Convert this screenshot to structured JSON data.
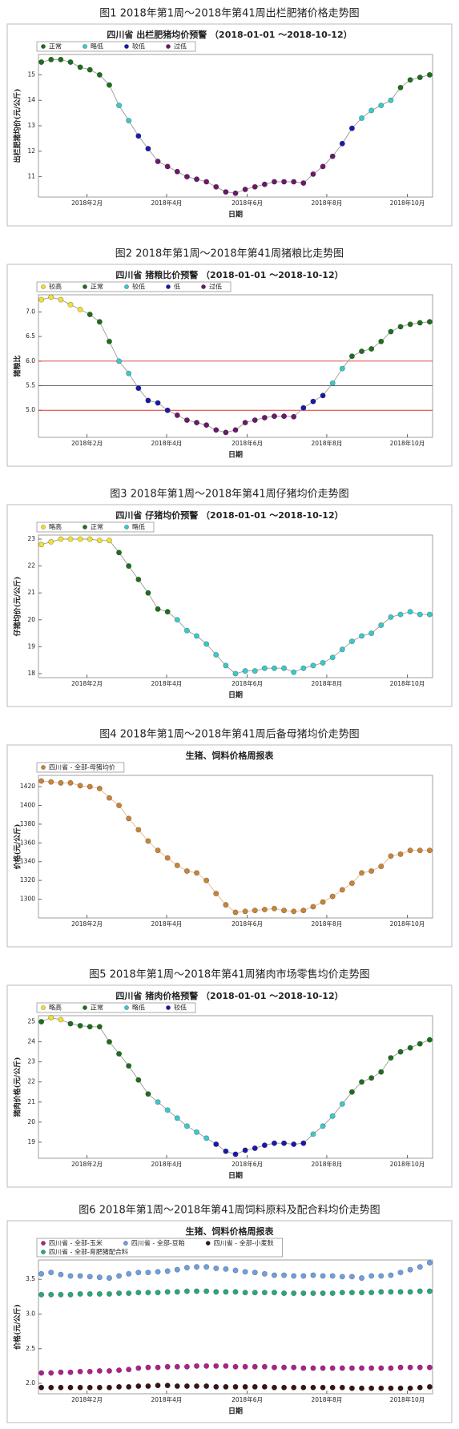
{
  "chart_data": [
    {
      "type": "scatter",
      "caption": "图1 2018年第1周～2018年第41周出栏肥猪价格走势图",
      "title": "四川省 出栏肥猪均价预警 （2018-01-01 ～2018-10-12）",
      "x_label": "日期",
      "y_label": "出栏肥猪均价(元/公斤)",
      "line_color": "#9a9a9a",
      "xlim": [
        0.7,
        41.3
      ],
      "xticks": [
        {
          "value": 5.7,
          "label": "2018年2月"
        },
        {
          "value": 13.9,
          "label": "2018年4月"
        },
        {
          "value": 22.2,
          "label": "2018年6月"
        },
        {
          "value": 30.4,
          "label": "2018年8月"
        },
        {
          "value": 38.7,
          "label": "2018年10月"
        }
      ],
      "ylim": [
        10.2,
        15.8
      ],
      "yticks": [
        11,
        12,
        13,
        14,
        15
      ],
      "series": [
        {
          "name": "正常",
          "color": "#1e6e1e",
          "x": [
            1,
            2,
            3,
            4,
            5,
            6,
            7,
            8,
            38,
            39,
            40,
            41
          ],
          "values": [
            15.5,
            15.6,
            15.6,
            15.5,
            15.3,
            15.2,
            15.0,
            14.6,
            14.5,
            14.8,
            14.9,
            15.0
          ]
        },
        {
          "name": "略低",
          "color": "#3cc8c8",
          "x": [
            9,
            10,
            34,
            35,
            36,
            37
          ],
          "values": [
            13.8,
            13.2,
            13.3,
            13.6,
            13.8,
            14.0
          ]
        },
        {
          "name": "较低",
          "color": "#1a1aa8",
          "x": [
            11,
            12,
            32,
            33
          ],
          "values": [
            12.6,
            12.1,
            12.3,
            12.9
          ]
        },
        {
          "name": "过低",
          "color": "#6a1a6a",
          "x": [
            13,
            14,
            15,
            16,
            17,
            18,
            19,
            20,
            21,
            22,
            23,
            24,
            25,
            26,
            27,
            28,
            29,
            30,
            31
          ],
          "values": [
            11.6,
            11.4,
            11.2,
            11.0,
            10.9,
            10.8,
            10.6,
            10.4,
            10.35,
            10.5,
            10.6,
            10.7,
            10.8,
            10.8,
            10.8,
            10.75,
            11.1,
            11.4,
            11.8
          ]
        }
      ]
    },
    {
      "type": "scatter",
      "caption": "图2 2018年第1周～2018年第41周猪粮比走势图",
      "title": "四川省 猪粮比价预警 （2018-01-01 ～2018-10-12）",
      "x_label": "日期",
      "y_label": "猪粮比",
      "line_color": "#9a9a9a",
      "xlim": [
        0.7,
        41.3
      ],
      "xticks": [
        {
          "value": 5.7,
          "label": "2018年2月"
        },
        {
          "value": 13.9,
          "label": "2018年4月"
        },
        {
          "value": 22.2,
          "label": "2018年6月"
        },
        {
          "value": 30.4,
          "label": "2018年8月"
        },
        {
          "value": 38.7,
          "label": "2018年10月"
        }
      ],
      "ylim": [
        4.45,
        7.35
      ],
      "yticks": [
        {
          "value": 5,
          "label": "5.0"
        },
        5.5,
        {
          "value": 6,
          "label": "6.0"
        },
        6.5,
        {
          "value": 7,
          "label": "7.0"
        }
      ],
      "reference_lines": [
        {
          "value": 5.0,
          "color": "#e03030"
        },
        {
          "value": 5.5,
          "color": "#555555"
        },
        {
          "value": 6.0,
          "color": "#e03030"
        }
      ],
      "series": [
        {
          "name": "较高",
          "color": "#f0e030",
          "x": [
            1,
            2,
            3,
            4,
            5
          ],
          "values": [
            7.25,
            7.3,
            7.25,
            7.15,
            7.05
          ]
        },
        {
          "name": "正常",
          "color": "#1e6e1e",
          "x": [
            6,
            7,
            8,
            33,
            34,
            35,
            36,
            37,
            38,
            39,
            40,
            41
          ],
          "values": [
            6.95,
            6.8,
            6.4,
            6.1,
            6.2,
            6.25,
            6.4,
            6.6,
            6.7,
            6.75,
            6.78,
            6.8
          ]
        },
        {
          "name": "较低",
          "color": "#3cc8c8",
          "x": [
            9,
            10,
            31,
            32
          ],
          "values": [
            6.0,
            5.75,
            5.55,
            5.85
          ]
        },
        {
          "name": "低",
          "color": "#1a1aa8",
          "x": [
            11,
            12,
            13,
            14,
            28,
            29,
            30
          ],
          "values": [
            5.45,
            5.2,
            5.15,
            5.0,
            5.05,
            5.18,
            5.3
          ]
        },
        {
          "name": "过低",
          "color": "#6a1a6a",
          "x": [
            15,
            16,
            17,
            18,
            19,
            20,
            21,
            22,
            23,
            24,
            25,
            26,
            27
          ],
          "values": [
            4.9,
            4.8,
            4.75,
            4.7,
            4.6,
            4.55,
            4.6,
            4.75,
            4.8,
            4.85,
            4.88,
            4.88,
            4.87
          ]
        }
      ]
    },
    {
      "type": "scatter",
      "caption": "图3 2018年第1周～2018年第41周仔猪均价走势图",
      "title": "四川省 仔猪均价预警 （2018-01-01 ～2018-10-12）",
      "x_label": "日期",
      "y_label": "仔猪均价(元/公斤)",
      "line_color": "#9a9a9a",
      "xlim": [
        0.7,
        41.3
      ],
      "xticks": [
        {
          "value": 5.7,
          "label": "2018年2月"
        },
        {
          "value": 13.9,
          "label": "2018年4月"
        },
        {
          "value": 22.2,
          "label": "2018年6月"
        },
        {
          "value": 30.4,
          "label": "2018年8月"
        },
        {
          "value": 38.7,
          "label": "2018年10月"
        }
      ],
      "ylim": [
        17.85,
        23.15
      ],
      "yticks": [
        18,
        19,
        20,
        21,
        22,
        23
      ],
      "series": [
        {
          "name": "略高",
          "color": "#f0e030",
          "x": [
            1,
            2,
            3,
            4,
            5,
            6,
            7,
            8
          ],
          "values": [
            22.8,
            22.9,
            23.0,
            23.0,
            23.0,
            23.0,
            22.95,
            22.95
          ]
        },
        {
          "name": "正常",
          "color": "#1e6e1e",
          "x": [
            9,
            10,
            11,
            12,
            13,
            14
          ],
          "values": [
            22.5,
            22.0,
            21.5,
            21.0,
            20.4,
            20.3
          ]
        },
        {
          "name": "略低",
          "color": "#3cc8c8",
          "x": [
            15,
            16,
            17,
            18,
            19,
            20,
            21,
            22,
            23,
            24,
            25,
            26,
            27,
            28,
            29,
            30,
            31,
            32,
            33,
            34,
            35,
            36,
            37,
            38,
            39,
            40,
            41
          ],
          "values": [
            20.0,
            19.6,
            19.4,
            19.1,
            18.7,
            18.3,
            18.0,
            18.1,
            18.1,
            18.2,
            18.2,
            18.2,
            18.05,
            18.2,
            18.3,
            18.4,
            18.6,
            18.9,
            19.2,
            19.4,
            19.5,
            19.8,
            20.1,
            20.2,
            20.3,
            20.2,
            20.2
          ]
        }
      ]
    },
    {
      "type": "scatter",
      "caption": "图4 2018年第1周～2018年第41周后备母猪均价走势图",
      "title": "生猪、饲料价格周报表",
      "y_label": "价格(元/公斤)",
      "line_color": "#e8b888",
      "x": [
        1,
        2,
        3,
        4,
        5,
        6,
        7,
        8,
        9,
        10,
        11,
        12,
        13,
        14,
        15,
        16,
        17,
        18,
        19,
        20,
        21,
        22,
        23,
        24,
        25,
        26,
        27,
        28,
        29,
        30,
        31,
        32,
        33,
        34,
        35,
        36,
        37,
        38,
        39,
        40,
        41
      ],
      "xlim": [
        0.7,
        41.3
      ],
      "xticks": [
        {
          "value": 5.7,
          "label": "2018年2月"
        },
        {
          "value": 13.9,
          "label": "2018年4月"
        },
        {
          "value": 22.2,
          "label": "2018年6月"
        },
        {
          "value": 30.4,
          "label": "2018年8月"
        },
        {
          "value": 38.7,
          "label": "2018年10月"
        }
      ],
      "ylim": [
        1280,
        1432
      ],
      "yticks": [
        1300,
        1320,
        1340,
        1360,
        1380,
        1400,
        1420
      ],
      "series": [
        {
          "name": "四川省 - 全部-母猪均价",
          "color": "#c8843a",
          "values": [
            1426,
            1425,
            1424,
            1424,
            1421,
            1420,
            1418,
            1408,
            1400,
            1386,
            1374,
            1362,
            1352,
            1344,
            1336,
            1330,
            1328,
            1320,
            1306,
            1294,
            1286,
            1287,
            1288,
            1289,
            1290,
            1288,
            1287,
            1288,
            1292,
            1297,
            1303,
            1310,
            1317,
            1328,
            1330,
            1335,
            1346,
            1348,
            1352,
            1352,
            1352
          ]
        }
      ]
    },
    {
      "type": "scatter",
      "caption": "图5 2018年第1周～2018年第41周猪肉市场零售均价走势图",
      "title": "四川省 猪肉价格预警 （2018-01-01 ～2018-10-12）",
      "x_label": "日期",
      "y_label": "猪肉价格(元/公斤)",
      "line_color": "#9a9a9a",
      "xlim": [
        0.7,
        41.3
      ],
      "xticks": [
        {
          "value": 5.7,
          "label": "2018年2月"
        },
        {
          "value": 13.9,
          "label": "2018年4月"
        },
        {
          "value": 22.2,
          "label": "2018年6月"
        },
        {
          "value": 30.4,
          "label": "2018年8月"
        },
        {
          "value": 38.7,
          "label": "2018年10月"
        }
      ],
      "ylim": [
        18.2,
        25.3
      ],
      "yticks": [
        19,
        20,
        21,
        22,
        23,
        24,
        25
      ],
      "series": [
        {
          "name": "略高",
          "color": "#f0e030",
          "x": [
            2,
            3
          ],
          "values": [
            25.2,
            25.1
          ]
        },
        {
          "name": "正常",
          "color": "#1e6e1e",
          "x": [
            1,
            4,
            5,
            6,
            7,
            8,
            9,
            10,
            11,
            12,
            33,
            34,
            35,
            36,
            37,
            38,
            39,
            40,
            41
          ],
          "values": [
            25.0,
            24.9,
            24.8,
            24.75,
            24.75,
            24.0,
            23.4,
            22.8,
            22.1,
            21.4,
            21.5,
            22.0,
            22.2,
            22.5,
            23.2,
            23.5,
            23.7,
            23.9,
            24.1
          ]
        },
        {
          "name": "略低",
          "color": "#3cc8c8",
          "x": [
            13,
            14,
            15,
            16,
            17,
            18,
            29,
            30,
            31,
            32
          ],
          "values": [
            21.0,
            20.6,
            20.2,
            19.8,
            19.5,
            19.2,
            19.4,
            19.8,
            20.3,
            20.9
          ]
        },
        {
          "name": "较低",
          "color": "#1a1aa8",
          "x": [
            19,
            20,
            21,
            22,
            23,
            24,
            25,
            26,
            27,
            28
          ],
          "values": [
            18.9,
            18.55,
            18.4,
            18.6,
            18.7,
            18.85,
            18.95,
            18.95,
            18.9,
            18.95
          ]
        }
      ]
    },
    {
      "type": "scatter",
      "caption": "图6 2018年第1周～2018年第41周饲料原料及配合料均价走势图",
      "title": "生猪、饲料价格周报表",
      "x_label": "日期",
      "y_label": "价格(元/公斤)",
      "x": [
        1,
        2,
        3,
        4,
        5,
        6,
        7,
        8,
        9,
        10,
        11,
        12,
        13,
        14,
        15,
        16,
        17,
        18,
        19,
        20,
        21,
        22,
        23,
        24,
        25,
        26,
        27,
        28,
        29,
        30,
        31,
        32,
        33,
        34,
        35,
        36,
        37,
        38,
        39,
        40,
        41
      ],
      "xlim": [
        0.7,
        41.3
      ],
      "xticks": [
        {
          "value": 5.7,
          "label": "2018年2月"
        },
        {
          "value": 13.9,
          "label": "2018年4月"
        },
        {
          "value": 22.2,
          "label": "2018年6月"
        },
        {
          "value": 30.4,
          "label": "2018年8月"
        },
        {
          "value": 38.7,
          "label": "2018年10月"
        }
      ],
      "ylim": [
        1.85,
        3.78
      ],
      "yticks": [
        {
          "value": 2,
          "label": "2.0"
        },
        2.5,
        {
          "value": 3,
          "label": "3.0"
        },
        3.5
      ],
      "series": [
        {
          "name": "四川省 - 全部-玉米",
          "color": "#b0208a",
          "values": [
            2.15,
            2.15,
            2.16,
            2.16,
            2.17,
            2.17,
            2.18,
            2.18,
            2.19,
            2.2,
            2.22,
            2.23,
            2.23,
            2.24,
            2.24,
            2.24,
            2.25,
            2.25,
            2.25,
            2.25,
            2.24,
            2.24,
            2.24,
            2.24,
            2.23,
            2.23,
            2.23,
            2.22,
            2.22,
            2.22,
            2.22,
            2.22,
            2.22,
            2.22,
            2.22,
            2.22,
            2.22,
            2.23,
            2.23,
            2.23,
            2.23
          ]
        },
        {
          "name": "四川省 - 全部-豆粕",
          "color": "#6f9fe0",
          "values": [
            3.58,
            3.6,
            3.57,
            3.55,
            3.55,
            3.54,
            3.53,
            3.52,
            3.55,
            3.58,
            3.6,
            3.6,
            3.61,
            3.62,
            3.64,
            3.67,
            3.68,
            3.68,
            3.66,
            3.65,
            3.63,
            3.61,
            3.6,
            3.58,
            3.56,
            3.56,
            3.55,
            3.55,
            3.56,
            3.55,
            3.55,
            3.54,
            3.54,
            3.52,
            3.55,
            3.55,
            3.56,
            3.6,
            3.64,
            3.68,
            3.74
          ]
        },
        {
          "name": "四川省 - 全部-小麦麸",
          "color": "#3a1414",
          "values": [
            1.94,
            1.94,
            1.94,
            1.94,
            1.94,
            1.94,
            1.94,
            1.94,
            1.95,
            1.95,
            1.96,
            1.96,
            1.97,
            1.97,
            1.96,
            1.96,
            1.96,
            1.96,
            1.95,
            1.95,
            1.95,
            1.95,
            1.95,
            1.95,
            1.94,
            1.94,
            1.94,
            1.94,
            1.94,
            1.94,
            1.94,
            1.94,
            1.93,
            1.93,
            1.93,
            1.93,
            1.93,
            1.93,
            1.93,
            1.94,
            1.95
          ]
        },
        {
          "name": "四川省 - 全部-育肥猪配合料",
          "color": "#2aa878",
          "values": [
            3.28,
            3.28,
            3.28,
            3.28,
            3.29,
            3.29,
            3.29,
            3.29,
            3.3,
            3.3,
            3.31,
            3.31,
            3.31,
            3.32,
            3.32,
            3.33,
            3.33,
            3.33,
            3.32,
            3.32,
            3.32,
            3.31,
            3.31,
            3.31,
            3.31,
            3.3,
            3.3,
            3.3,
            3.3,
            3.3,
            3.3,
            3.31,
            3.31,
            3.31,
            3.31,
            3.32,
            3.32,
            3.32,
            3.32,
            3.33,
            3.33
          ]
        }
      ]
    }
  ]
}
